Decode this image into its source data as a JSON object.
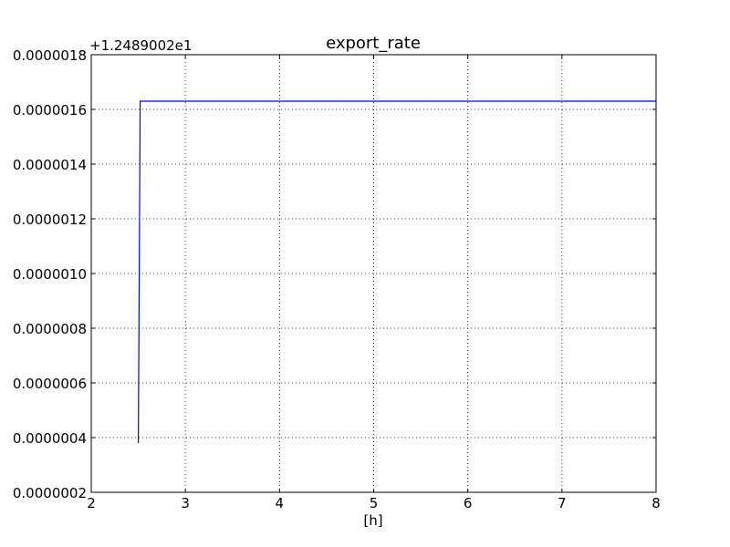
{
  "chart_data": {
    "type": "line",
    "title": "export_rate",
    "xlabel": "[h]",
    "ylabel": "",
    "offset_label": "+1.2489002e1",
    "xlim": [
      2,
      8
    ],
    "ylim": [
      2e-07,
      1.8e-06
    ],
    "xticks": [
      2,
      3,
      4,
      5,
      6,
      7,
      8
    ],
    "xtick_labels": [
      "2",
      "3",
      "4",
      "5",
      "6",
      "7",
      "8"
    ],
    "yticks": [
      2e-07,
      4e-07,
      6e-07,
      8e-07,
      1e-06,
      1.2e-06,
      1.4e-06,
      1.6e-06,
      1.8e-06
    ],
    "ytick_labels": [
      "0.0000002",
      "0.0000004",
      "0.0000006",
      "0.0000008",
      "0.0000010",
      "0.0000012",
      "0.0000014",
      "0.0000016",
      "0.0000018"
    ],
    "grid": true,
    "series": [
      {
        "color": "#0000ff",
        "x": [
          2.5,
          2.52,
          8.0
        ],
        "y": [
          3.8e-07,
          1.63e-06,
          1.63e-06
        ]
      }
    ]
  }
}
